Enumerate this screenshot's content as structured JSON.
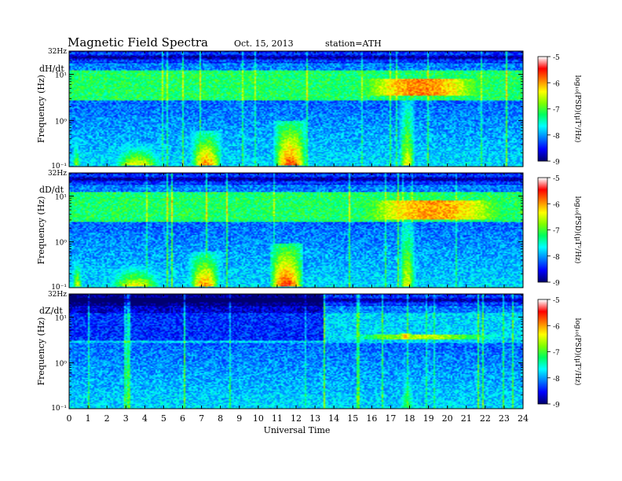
{
  "header": {
    "title": "Magnetic  Field  Spectra",
    "date": "Oct. 15, 2013",
    "station": "station=ATH"
  },
  "chart_data": {
    "type": "heatmap",
    "title": "Magnetic  Field  Spectra",
    "xlabel": "Universal Time",
    "xlim": [
      0,
      24
    ],
    "x_ticks": [
      "0",
      "1",
      "2",
      "3",
      "4",
      "5",
      "6",
      "7",
      "8",
      "9",
      "10",
      "11",
      "12",
      "13",
      "14",
      "15",
      "16",
      "17",
      "18",
      "19",
      "20",
      "21",
      "22",
      "23",
      "24"
    ],
    "ylabel": "Frequency (Hz)",
    "y_scale": "log",
    "ylim": [
      0.1,
      32
    ],
    "y_ticks": [
      "10⁻¹",
      "10⁰",
      "10¹"
    ],
    "y_top_label": "32Hz",
    "colorbar": {
      "label": "log₁₀(PSD)(μT²/Hz)",
      "range": [
        -9,
        -5
      ],
      "ticks": [
        "-5",
        "-6",
        "-7",
        "-8",
        "-9"
      ],
      "colormap": [
        "#000070",
        "#0000ff",
        "#0080ff",
        "#00ffff",
        "#00ff60",
        "#80ff00",
        "#ffff00",
        "#ff8000",
        "#ff0000",
        "#ffffff"
      ]
    },
    "panels": [
      {
        "name": "dH/dt",
        "events": [
          {
            "t": [
              0.1,
              0.6
            ],
            "f": [
              0.1,
              0.5
            ],
            "peak": -6.6
          },
          {
            "t": [
              2.2,
              5.0
            ],
            "f": [
              0.1,
              0.3
            ],
            "peak": -6.2
          },
          {
            "t": [
              6.4,
              8.1
            ],
            "f": [
              0.1,
              0.6
            ],
            "peak": -5.8
          },
          {
            "t": [
              10.8,
              12.6
            ],
            "f": [
              0.1,
              1.0
            ],
            "peak": -5.6
          },
          {
            "t": [
              17.4,
              18.4
            ],
            "f": [
              0.1,
              8.0
            ],
            "peak": -6.4
          },
          {
            "t": [
              14.8,
              22.5
            ],
            "f": [
              3.5,
              8.0
            ],
            "peak": -5.9
          }
        ]
      },
      {
        "name": "dD/dt",
        "events": [
          {
            "t": [
              0.1,
              0.7
            ],
            "f": [
              0.1,
              0.5
            ],
            "peak": -6.4
          },
          {
            "t": [
              2.0,
              5.0
            ],
            "f": [
              0.1,
              0.3
            ],
            "peak": -6.2
          },
          {
            "t": [
              6.3,
              8.0
            ],
            "f": [
              0.1,
              0.6
            ],
            "peak": -5.8
          },
          {
            "t": [
              10.6,
              12.4
            ],
            "f": [
              0.1,
              0.9
            ],
            "peak": -5.5
          },
          {
            "t": [
              17.4,
              18.4
            ],
            "f": [
              0.1,
              8.0
            ],
            "peak": -6.4
          },
          {
            "t": [
              14.6,
              24.0
            ],
            "f": [
              3.0,
              8.0
            ],
            "peak": -6.0
          }
        ]
      },
      {
        "name": "dZ/dt",
        "events": [
          {
            "t": [
              13.5,
              24.0
            ],
            "f": [
              3.2,
              4.2
            ],
            "peak": -6.6
          },
          {
            "t": [
              17.4,
              18.2
            ],
            "f": [
              3.2,
              4.5
            ],
            "peak": -6.1
          },
          {
            "t": [
              17.4,
              18.4
            ],
            "f": [
              0.1,
              3.0
            ],
            "peak": -7.0
          }
        ]
      }
    ]
  }
}
